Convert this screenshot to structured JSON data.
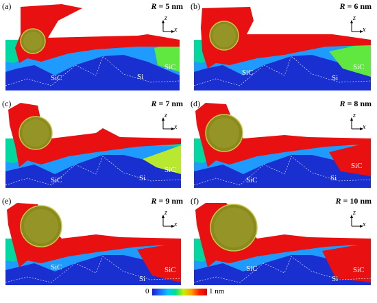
{
  "colorbar": {
    "min_label": "0",
    "max_label": "1 nm"
  },
  "axes": {
    "z_label": "z",
    "x_label": "x"
  },
  "panels": [
    {
      "label": "(a)",
      "r_symbol": "R",
      "r_text": " = 5 nm",
      "materials": [
        "SiC",
        "Si",
        "SiC"
      ],
      "sphere": 0.5
    },
    {
      "label": "(b)",
      "r_symbol": "R",
      "r_text": " = 6 nm",
      "materials": [
        "SiC",
        "Si",
        "SiC"
      ],
      "sphere": 0.6
    },
    {
      "label": "(c)",
      "r_symbol": "R",
      "r_text": " = 7 nm",
      "materials": [
        "SiC",
        "Si",
        "SiC"
      ],
      "sphere": 0.7
    },
    {
      "label": "(d)",
      "r_symbol": "R",
      "r_text": " = 8 nm",
      "materials": [
        "SiC",
        "Si",
        "SiC"
      ],
      "sphere": 0.8
    },
    {
      "label": "(e)",
      "r_symbol": "R",
      "r_text": " = 9 nm",
      "materials": [
        "SiC",
        "Si",
        "SiC"
      ],
      "sphere": 0.9
    },
    {
      "label": "(f)",
      "r_symbol": "R",
      "r_text": " = 10 nm",
      "materials": [
        "SiC",
        "Si",
        "SiC"
      ],
      "sphere": 1.0
    }
  ],
  "colors": {
    "chip": "#e81010",
    "sphere": "#8a8a1e",
    "deep": "#1a2fd0"
  }
}
